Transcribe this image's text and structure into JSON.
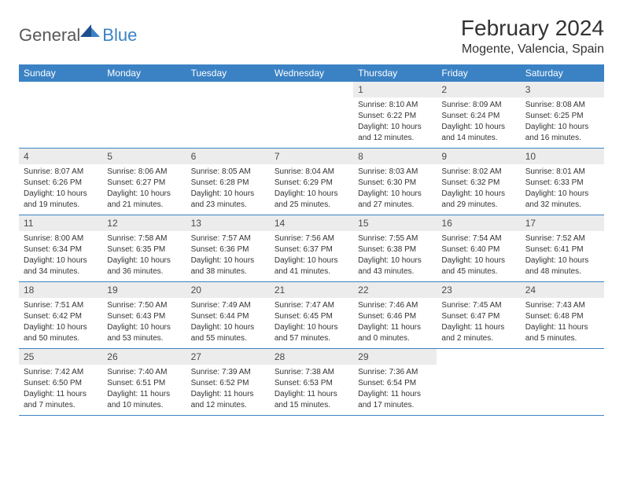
{
  "logo": {
    "general": "General",
    "blue": "Blue"
  },
  "title": "February 2024",
  "location": "Mogente, Valencia, Spain",
  "weekdays": [
    "Sunday",
    "Monday",
    "Tuesday",
    "Wednesday",
    "Thursday",
    "Friday",
    "Saturday"
  ],
  "colors": {
    "header_bg": "#3b82c4",
    "daynum_bg": "#ececec",
    "text": "#333333",
    "logo_gray": "#585858",
    "logo_blue": "#3b82c4"
  },
  "weeks": [
    [
      null,
      null,
      null,
      null,
      {
        "n": "1",
        "sunrise": "Sunrise: 8:10 AM",
        "sunset": "Sunset: 6:22 PM",
        "daylight": "Daylight: 10 hours and 12 minutes."
      },
      {
        "n": "2",
        "sunrise": "Sunrise: 8:09 AM",
        "sunset": "Sunset: 6:24 PM",
        "daylight": "Daylight: 10 hours and 14 minutes."
      },
      {
        "n": "3",
        "sunrise": "Sunrise: 8:08 AM",
        "sunset": "Sunset: 6:25 PM",
        "daylight": "Daylight: 10 hours and 16 minutes."
      }
    ],
    [
      {
        "n": "4",
        "sunrise": "Sunrise: 8:07 AM",
        "sunset": "Sunset: 6:26 PM",
        "daylight": "Daylight: 10 hours and 19 minutes."
      },
      {
        "n": "5",
        "sunrise": "Sunrise: 8:06 AM",
        "sunset": "Sunset: 6:27 PM",
        "daylight": "Daylight: 10 hours and 21 minutes."
      },
      {
        "n": "6",
        "sunrise": "Sunrise: 8:05 AM",
        "sunset": "Sunset: 6:28 PM",
        "daylight": "Daylight: 10 hours and 23 minutes."
      },
      {
        "n": "7",
        "sunrise": "Sunrise: 8:04 AM",
        "sunset": "Sunset: 6:29 PM",
        "daylight": "Daylight: 10 hours and 25 minutes."
      },
      {
        "n": "8",
        "sunrise": "Sunrise: 8:03 AM",
        "sunset": "Sunset: 6:30 PM",
        "daylight": "Daylight: 10 hours and 27 minutes."
      },
      {
        "n": "9",
        "sunrise": "Sunrise: 8:02 AM",
        "sunset": "Sunset: 6:32 PM",
        "daylight": "Daylight: 10 hours and 29 minutes."
      },
      {
        "n": "10",
        "sunrise": "Sunrise: 8:01 AM",
        "sunset": "Sunset: 6:33 PM",
        "daylight": "Daylight: 10 hours and 32 minutes."
      }
    ],
    [
      {
        "n": "11",
        "sunrise": "Sunrise: 8:00 AM",
        "sunset": "Sunset: 6:34 PM",
        "daylight": "Daylight: 10 hours and 34 minutes."
      },
      {
        "n": "12",
        "sunrise": "Sunrise: 7:58 AM",
        "sunset": "Sunset: 6:35 PM",
        "daylight": "Daylight: 10 hours and 36 minutes."
      },
      {
        "n": "13",
        "sunrise": "Sunrise: 7:57 AM",
        "sunset": "Sunset: 6:36 PM",
        "daylight": "Daylight: 10 hours and 38 minutes."
      },
      {
        "n": "14",
        "sunrise": "Sunrise: 7:56 AM",
        "sunset": "Sunset: 6:37 PM",
        "daylight": "Daylight: 10 hours and 41 minutes."
      },
      {
        "n": "15",
        "sunrise": "Sunrise: 7:55 AM",
        "sunset": "Sunset: 6:38 PM",
        "daylight": "Daylight: 10 hours and 43 minutes."
      },
      {
        "n": "16",
        "sunrise": "Sunrise: 7:54 AM",
        "sunset": "Sunset: 6:40 PM",
        "daylight": "Daylight: 10 hours and 45 minutes."
      },
      {
        "n": "17",
        "sunrise": "Sunrise: 7:52 AM",
        "sunset": "Sunset: 6:41 PM",
        "daylight": "Daylight: 10 hours and 48 minutes."
      }
    ],
    [
      {
        "n": "18",
        "sunrise": "Sunrise: 7:51 AM",
        "sunset": "Sunset: 6:42 PM",
        "daylight": "Daylight: 10 hours and 50 minutes."
      },
      {
        "n": "19",
        "sunrise": "Sunrise: 7:50 AM",
        "sunset": "Sunset: 6:43 PM",
        "daylight": "Daylight: 10 hours and 53 minutes."
      },
      {
        "n": "20",
        "sunrise": "Sunrise: 7:49 AM",
        "sunset": "Sunset: 6:44 PM",
        "daylight": "Daylight: 10 hours and 55 minutes."
      },
      {
        "n": "21",
        "sunrise": "Sunrise: 7:47 AM",
        "sunset": "Sunset: 6:45 PM",
        "daylight": "Daylight: 10 hours and 57 minutes."
      },
      {
        "n": "22",
        "sunrise": "Sunrise: 7:46 AM",
        "sunset": "Sunset: 6:46 PM",
        "daylight": "Daylight: 11 hours and 0 minutes."
      },
      {
        "n": "23",
        "sunrise": "Sunrise: 7:45 AM",
        "sunset": "Sunset: 6:47 PM",
        "daylight": "Daylight: 11 hours and 2 minutes."
      },
      {
        "n": "24",
        "sunrise": "Sunrise: 7:43 AM",
        "sunset": "Sunset: 6:48 PM",
        "daylight": "Daylight: 11 hours and 5 minutes."
      }
    ],
    [
      {
        "n": "25",
        "sunrise": "Sunrise: 7:42 AM",
        "sunset": "Sunset: 6:50 PM",
        "daylight": "Daylight: 11 hours and 7 minutes."
      },
      {
        "n": "26",
        "sunrise": "Sunrise: 7:40 AM",
        "sunset": "Sunset: 6:51 PM",
        "daylight": "Daylight: 11 hours and 10 minutes."
      },
      {
        "n": "27",
        "sunrise": "Sunrise: 7:39 AM",
        "sunset": "Sunset: 6:52 PM",
        "daylight": "Daylight: 11 hours and 12 minutes."
      },
      {
        "n": "28",
        "sunrise": "Sunrise: 7:38 AM",
        "sunset": "Sunset: 6:53 PM",
        "daylight": "Daylight: 11 hours and 15 minutes."
      },
      {
        "n": "29",
        "sunrise": "Sunrise: 7:36 AM",
        "sunset": "Sunset: 6:54 PM",
        "daylight": "Daylight: 11 hours and 17 minutes."
      },
      null,
      null
    ]
  ]
}
